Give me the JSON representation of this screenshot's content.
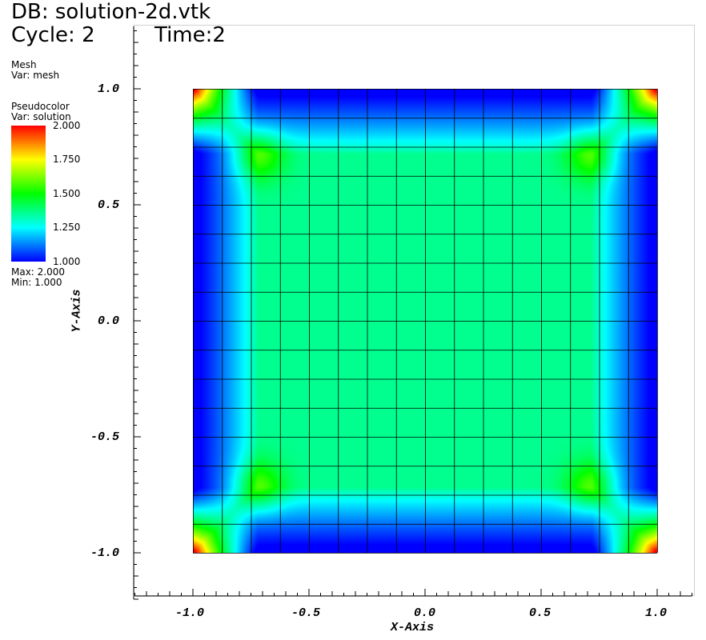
{
  "header": {
    "db": "DB: solution-2d.vtk",
    "cycle": "Cycle: 2",
    "time": "Time:2"
  },
  "legend_mesh": {
    "title": "Mesh",
    "var": "Var: mesh"
  },
  "legend_pseudo": {
    "title": "Pseudocolor",
    "var": "Var: solution",
    "ticks": [
      "2.000",
      "1.750",
      "1.500",
      "1.250",
      "1.000"
    ],
    "max": "Max:  2.000",
    "min": "Min:  1.000"
  },
  "chart_data": {
    "type": "heatmap",
    "xlabel": "X-Axis",
    "ylabel": "Y-Axis",
    "xlim": [
      -1.25,
      1.15
    ],
    "ylim": [
      -1.2,
      1.27
    ],
    "x_ticks": [
      "-1.0",
      "-0.5",
      "0.0",
      "0.5",
      "1.0"
    ],
    "y_ticks": [
      "1.0",
      "0.5",
      "0.0",
      "-0.5",
      "-1.0"
    ],
    "mesh": {
      "nx": 16,
      "ny": 16,
      "x_range": [
        -1,
        1
      ],
      "y_range": [
        -1,
        1
      ]
    },
    "color_range": [
      1.0,
      2.0
    ],
    "colormap": [
      "#0000ff",
      "#00ffff",
      "#00ff00",
      "#ffff00",
      "#ff0000"
    ]
  }
}
